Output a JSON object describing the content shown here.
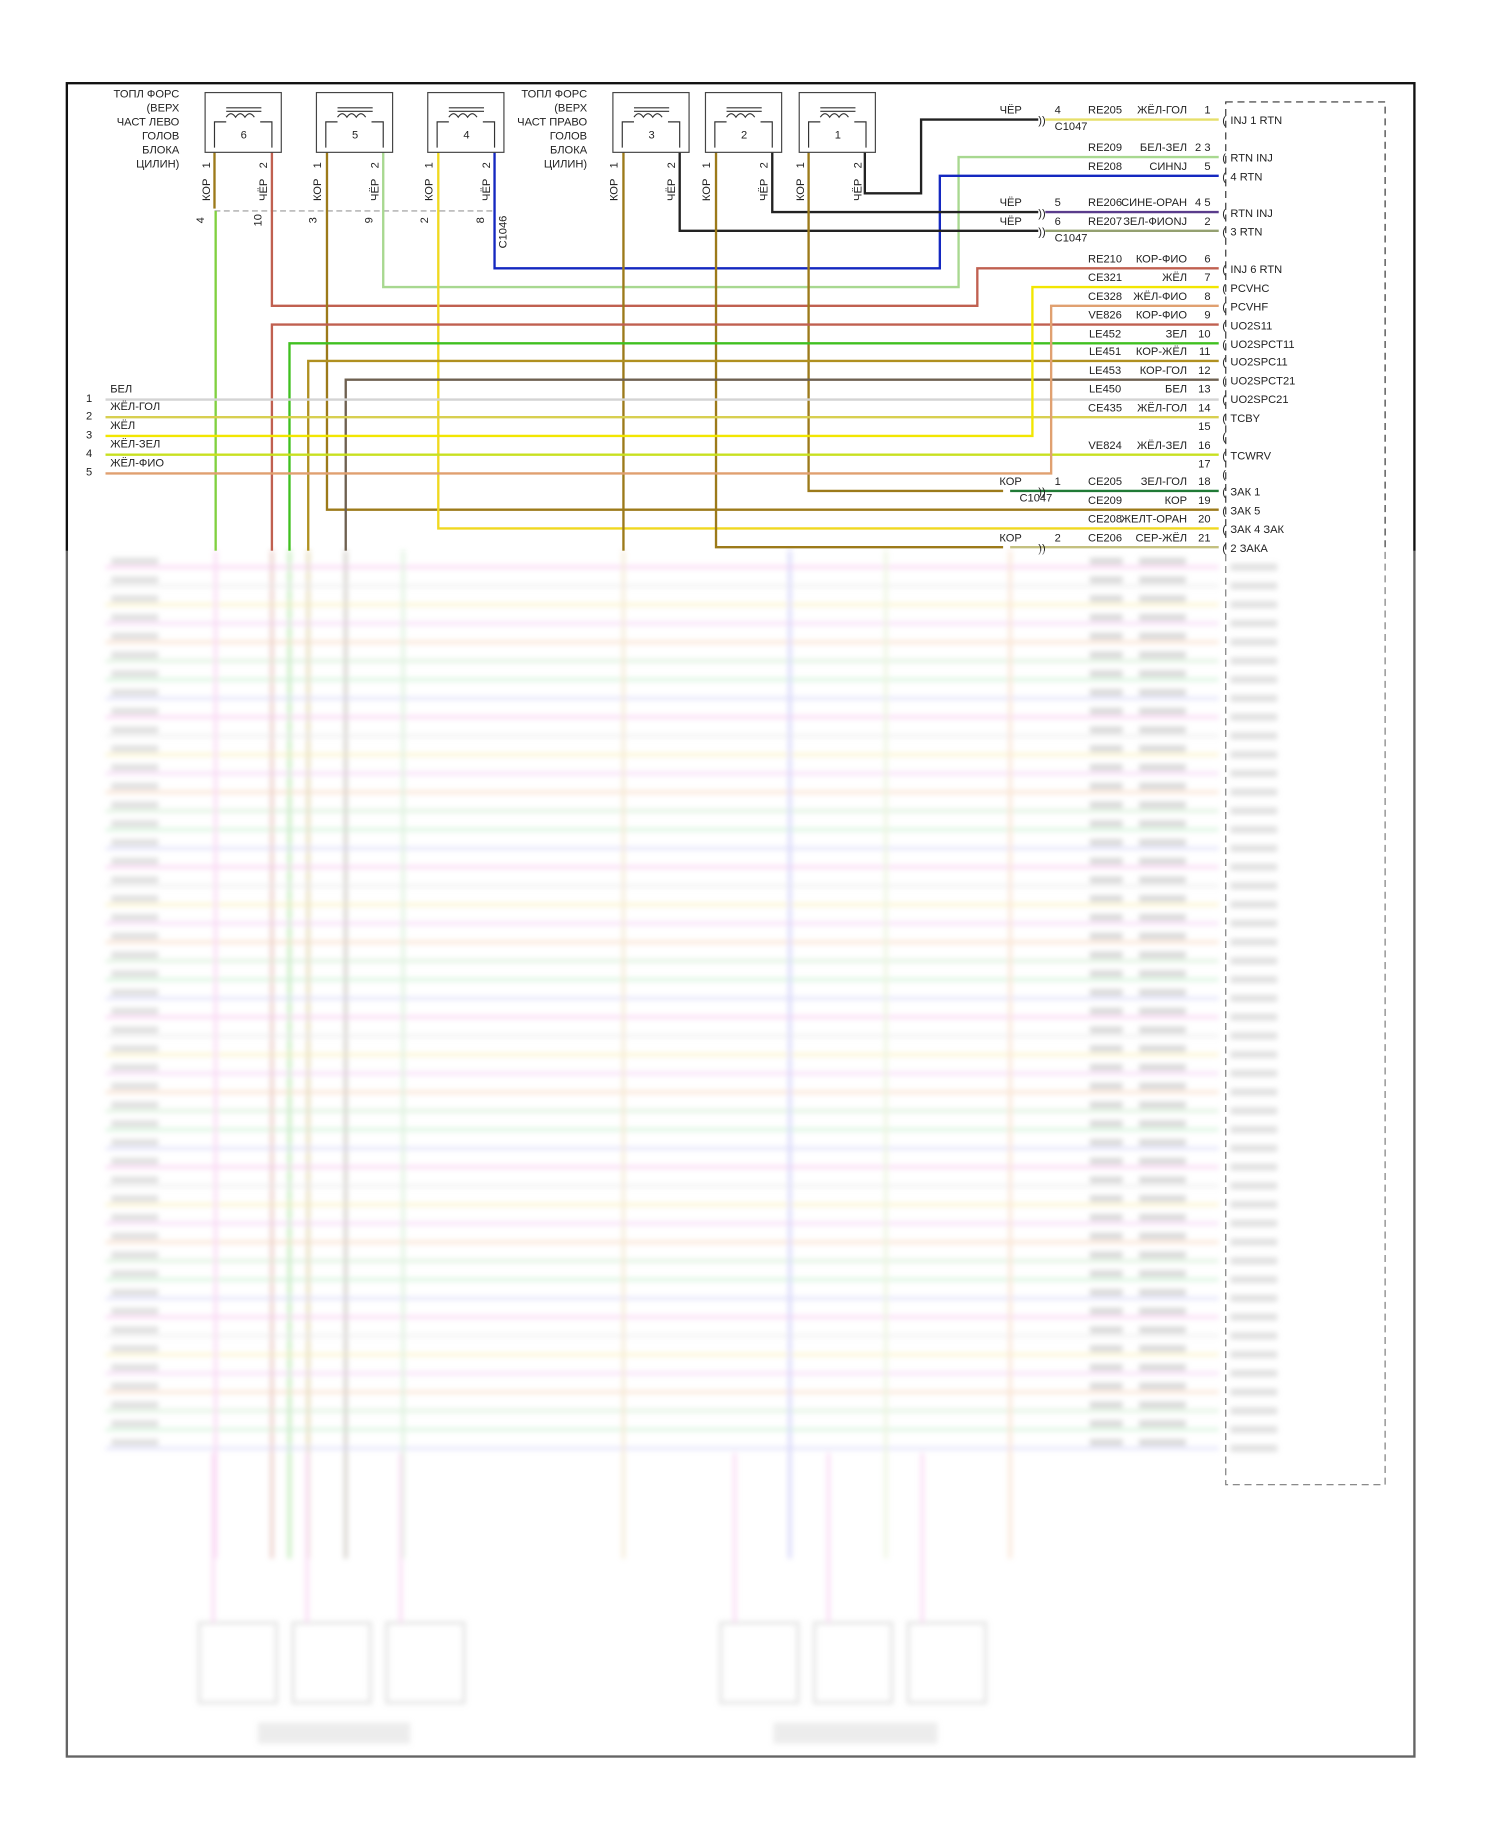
{
  "injector_groups": [
    {
      "label_lines": [
        "ТОПЛ ФОРС",
        "(ВЕРХ",
        "ЧАСТ ЛЕВО",
        "ГОЛОВ",
        "БЛОКА",
        "ЦИЛИН)"
      ],
      "injectors": [
        "6",
        "5",
        "4"
      ]
    },
    {
      "label_lines": [
        "ТОПЛ ФОРС",
        "(ВЕРХ",
        "ЧАСТ ПРАВО",
        "ГОЛОВ",
        "БЛОКА",
        "ЦИЛИН)"
      ],
      "injectors": [
        "3",
        "2",
        "1"
      ]
    }
  ],
  "injector_pins": [
    "1",
    "2"
  ],
  "injector_wire_colors": [
    "КОР",
    "ЧЁР"
  ],
  "c1046": {
    "name": "C1046",
    "pins": [
      "4",
      "10",
      "3",
      "9",
      "2",
      "8"
    ]
  },
  "c1047": {
    "name": "C1047"
  },
  "ecm_rows": [
    {
      "conn_color": "ЧЁР",
      "conn_pin": "4",
      "circuit": "RE205",
      "color_name": "ЖЁЛ-ГОЛ",
      "pin": "1",
      "function": "INJ 1 RTN",
      "hex": "#e6df6a"
    },
    {
      "circuit": "RE209",
      "color_name": "БЕЛ-ЗЕЛ",
      "pin": "2 3",
      "function": "RTN INJ",
      "hex": "#a8d890"
    },
    {
      "circuit": "RE208",
      "color_name": "СИНNJ",
      "pin": "5",
      "function": "4 RTN",
      "hex": "#1428c0"
    },
    {
      "conn_color": "ЧЁР",
      "conn_pin": "5",
      "circuit": "RE206",
      "color_name": "СИНЕ-ОРАН",
      "pin": "4 5",
      "function": "RTN INJ",
      "hex": "#5a3c8c"
    },
    {
      "conn_color": "ЧЁР",
      "conn_pin": "6",
      "circuit": "RE207",
      "color_name": "ЗЕЛ-ФИОNJ",
      "pin": "2",
      "function": "3 RTN",
      "hex": "#94a070"
    },
    {
      "circuit": "RE210",
      "color_name": "КОР-ФИО",
      "pin": "6",
      "function": "INJ 6 RTN",
      "hex": "#c06050"
    },
    {
      "circuit": "CE321",
      "color_name": "ЖЁЛ",
      "pin": "7",
      "function": "PCVHC",
      "hex": "#f2e600"
    },
    {
      "circuit": "CE328",
      "color_name": "ЖЁЛ-ФИО",
      "pin": "8",
      "function": "PCVHF",
      "hex": "#e0a070"
    },
    {
      "circuit": "VE826",
      "color_name": "КОР-ФИО",
      "pin": "9",
      "function": "UO2S11",
      "hex": "#c06050"
    },
    {
      "circuit": "LE452",
      "color_name": "ЗЕЛ",
      "pin": "10",
      "function": "UO2SPCT11",
      "hex": "#40c020"
    },
    {
      "circuit": "LE451",
      "color_name": "КОР-ЖЁЛ",
      "pin": "11",
      "function": "UO2SPC11",
      "hex": "#b09020"
    },
    {
      "circuit": "LE453",
      "color_name": "КОР-ГОЛ",
      "pin": "12",
      "function": "UO2SPCT21",
      "hex": "#6e6050"
    },
    {
      "circuit": "LE450",
      "color_name": "БЕЛ",
      "pin": "13",
      "function": "UO2SPC21",
      "hex": "#d4d4d4"
    },
    {
      "circuit": "CE435",
      "color_name": "ЖЁЛ-ГОЛ",
      "pin": "14",
      "function": "TCBY",
      "hex": "#d8cf50"
    },
    {
      "pin": "15"
    },
    {
      "circuit": "VE824",
      "color_name": "ЖЁЛ-ЗЕЛ",
      "pin": "16",
      "function": "TCWRV",
      "hex": "#c8e020"
    },
    {
      "pin": "17"
    },
    {
      "conn_color": "КОР",
      "conn_pin": "1",
      "circuit": "CE205",
      "color_name": "ЗЕЛ-ГОЛ",
      "pin": "18",
      "function": "ЗАК 1",
      "hex": "#207a36"
    },
    {
      "circuit": "CE209",
      "color_name": "КОР",
      "pin": "19",
      "function": "ЗАК 5",
      "hex": "#9c7a1a"
    },
    {
      "circuit": "CE208",
      "color_name": "ЖЕЛТ-ОРАН",
      "pin": "20",
      "function": "ЗАК 4 ЗАК",
      "hex": "#f0d820"
    },
    {
      "conn_color": "КОР",
      "conn_pin": "2",
      "circuit": "CE206",
      "color_name": "СЕР-ЖЁЛ",
      "pin": "21",
      "function": "2 ЗАКА",
      "hex": "#c4c080"
    }
  ],
  "left_connector": [
    {
      "pin": "1",
      "color_name": "БЕЛ",
      "hex": "#d4d4d4"
    },
    {
      "pin": "2",
      "color_name": "ЖЁЛ-ГОЛ",
      "hex": "#d8cf50"
    },
    {
      "pin": "3",
      "color_name": "ЖЁЛ",
      "hex": "#f2e600"
    },
    {
      "pin": "4",
      "color_name": "ЖЁЛ-ЗЕЛ",
      "hex": "#c8e020"
    },
    {
      "pin": "5",
      "color_name": "ЖЁЛ-ФИО",
      "hex": "#e0a070"
    }
  ],
  "colors": {
    "kor": "#9c7a1a",
    "cher": "#222222",
    "green": "#80d040",
    "red": "#c06050",
    "frame": "#111111"
  }
}
